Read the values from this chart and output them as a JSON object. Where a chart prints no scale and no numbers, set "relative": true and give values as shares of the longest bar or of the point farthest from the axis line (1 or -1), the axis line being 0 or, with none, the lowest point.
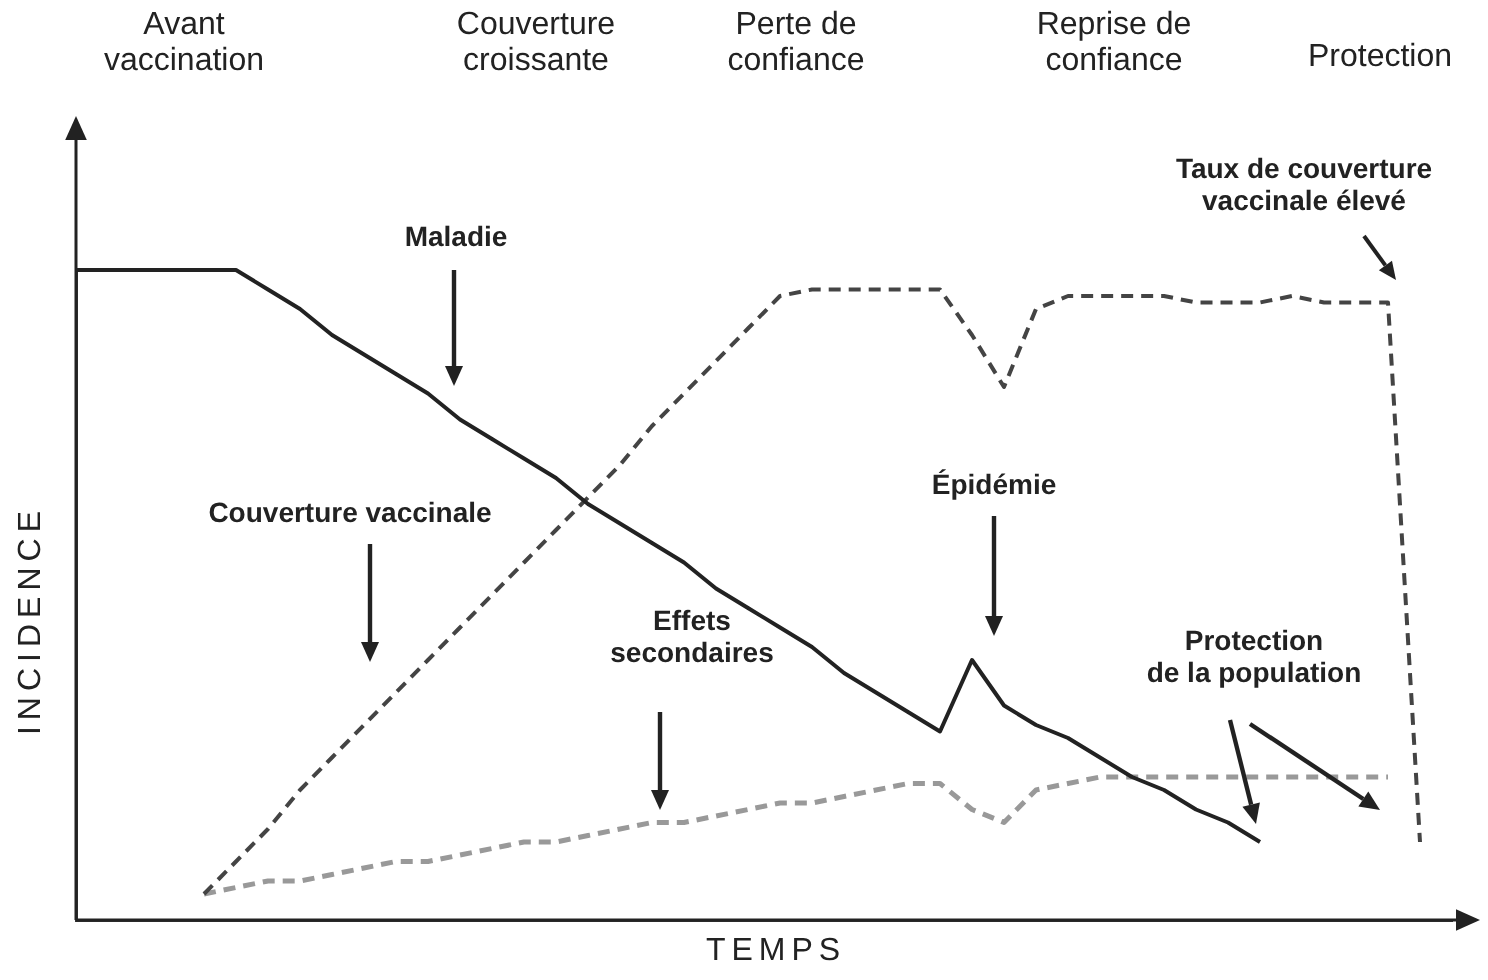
{
  "chart_data": {
    "type": "line",
    "relative": true,
    "xlabel": "TEMPS",
    "ylabel": "INCIDENCE",
    "legend": false,
    "grid": false,
    "marker": "none",
    "categories": [
      null,
      null,
      null,
      null,
      null,
      null,
      null,
      null,
      null,
      null,
      null,
      null,
      null,
      null,
      null,
      null,
      null,
      null,
      null,
      null,
      null,
      null,
      null,
      null,
      null,
      null,
      null,
      null,
      null,
      null,
      null,
      null,
      null,
      null,
      null,
      null,
      null,
      null,
      null,
      null,
      null,
      null,
      null,
      null
    ],
    "series": [
      {
        "color": "#222222",
        "line_style": "solid",
        "values": [
          1,
          1,
          1,
          1,
          1,
          1,
          0.97,
          0.94,
          0.9,
          0.87,
          0.84,
          0.81,
          0.77,
          0.74,
          0.71,
          0.68,
          0.64,
          0.61,
          0.58,
          0.55,
          0.51,
          0.48,
          0.45,
          0.42,
          0.38,
          0.35,
          0.32,
          0.29,
          0.4,
          0.33,
          0.3,
          0.28,
          0.25,
          0.22,
          0.2,
          0.17,
          0.15,
          0.12,
          null,
          null,
          null,
          null,
          null,
          null
        ]
      },
      {
        "name": "Couverture vaccinale",
        "color": "#444444",
        "line_style": "dashed",
        "values": [
          null,
          null,
          null,
          null,
          0.04,
          0.09,
          0.14,
          0.2,
          0.25,
          0.3,
          0.35,
          0.4,
          0.45,
          0.5,
          0.55,
          0.6,
          0.65,
          0.7,
          0.76,
          0.81,
          0.86,
          0.91,
          0.96,
          0.97,
          0.97,
          0.97,
          0.97,
          0.97,
          0.9,
          0.82,
          0.94,
          0.96,
          0.96,
          0.96,
          0.96,
          0.95,
          0.95,
          0.95,
          0.96,
          0.95,
          0.95,
          0.95,
          0.12,
          null
        ]
      },
      {
        "color": "#999999",
        "line_style": "dashed",
        "values": [
          null,
          null,
          null,
          null,
          0.04,
          0.05,
          0.06,
          0.06,
          0.07,
          0.08,
          0.09,
          0.09,
          0.1,
          0.11,
          0.12,
          0.12,
          0.13,
          0.14,
          0.15,
          0.15,
          0.16,
          0.17,
          0.18,
          0.18,
          0.19,
          0.2,
          0.21,
          0.21,
          0.17,
          0.15,
          0.2,
          0.21,
          0.22,
          0.22,
          0.22,
          0.22,
          0.22,
          0.22,
          0.22,
          0.22,
          0.22,
          0.22,
          null,
          null
        ]
      }
    ],
    "annotations": [
      "Avant\nvaccination",
      "Couverture\ncroissante",
      "Perte de\nconfiance",
      "Reprise de\nconfiance",
      "Protection",
      "Épidémie",
      "Protection\nde la population",
      "Taux de couverture\nvaccinale élevé",
      "Maladie",
      "Effets\nsecondaires"
    ]
  }
}
